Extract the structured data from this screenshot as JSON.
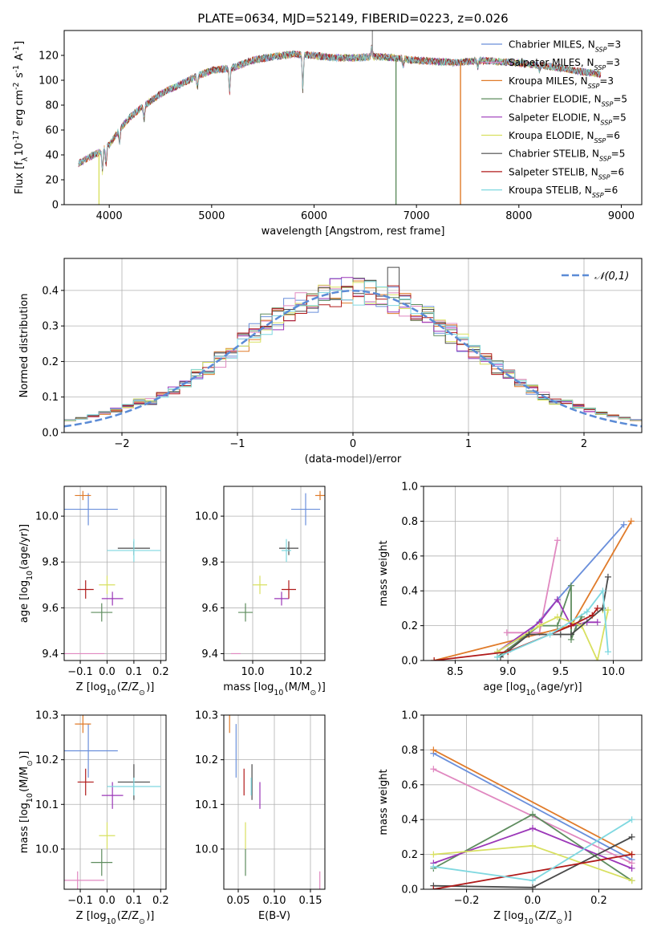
{
  "title": "PLATE=0634, MJD=52149, FIBERID=0223, z=0.026",
  "models": [
    {
      "name": "Chabrier MILES, N$_{SSP}$=3",
      "label": "Chabrier MILES, N",
      "sub": "SSP",
      "eq": "=3",
      "color": "#6a8fdb"
    },
    {
      "name": "Salpeter MILES, N$_{SSP}$=3",
      "label": "Salpeter MILES, N",
      "sub": "SSP",
      "eq": "=3",
      "color": "#e088c0"
    },
    {
      "name": "Kroupa MILES, N$_{SSP}$=3",
      "label": "Kroupa MILES, N",
      "sub": "SSP",
      "eq": "=3",
      "color": "#e07b2a"
    },
    {
      "name": "Chabrier ELODIE, N$_{SSP}$=5",
      "label": "Chabrier ELODIE, N",
      "sub": "SSP",
      "eq": "=5",
      "color": "#5e8c5e"
    },
    {
      "name": "Salpeter ELODIE, N$_{SSP}$=5",
      "label": "Salpeter ELODIE, N",
      "sub": "SSP",
      "eq": "=5",
      "color": "#9b37b8"
    },
    {
      "name": "Kroupa ELODIE, N$_{SSP}$=6",
      "label": "Kroupa ELODIE, N",
      "sub": "SSP",
      "eq": "=6",
      "color": "#d8e060"
    },
    {
      "name": "Chabrier STELIB, N$_{SSP}$=5",
      "label": "Chabrier STELIB, N",
      "sub": "SSP",
      "eq": "=5",
      "color": "#4a4a4a"
    },
    {
      "name": "Salpeter STELIB, N$_{SSP}$=6",
      "label": "Salpeter STELIB, N",
      "sub": "SSP",
      "eq": "=6",
      "color": "#b01a1a"
    },
    {
      "name": "Kroupa STELIB, N$_{SSP}$=6",
      "label": "Kroupa STELIB, N",
      "sub": "SSP",
      "eq": "=6",
      "color": "#7fd8e0"
    }
  ],
  "chart_data": [
    {
      "type": "line",
      "id": "spectrum",
      "xlabel": "wavelength [Angstrom, rest frame]",
      "ylabel": "Flux [f$_\\lambda$10$^{-17}$ erg cm$^{-2}$ s$^{-1}$ A$^{-1}$]",
      "xlim": [
        3560,
        9200
      ],
      "ylim": [
        0,
        140
      ],
      "xticks": [
        4000,
        5000,
        6000,
        7000,
        8000,
        9000
      ],
      "yticks": [
        0,
        20,
        40,
        60,
        80,
        100,
        120
      ],
      "continuum": {
        "x": [
          3700,
          3800,
          3900,
          4000,
          4100,
          4200,
          4300,
          4400,
          4500,
          4600,
          4800,
          5000,
          5200,
          5400,
          5600,
          5800,
          6000,
          6200,
          6400,
          6600,
          6800,
          7000,
          7200,
          7400,
          7600,
          7800,
          8000,
          8200,
          8400,
          8600,
          8800
        ],
        "y": [
          33,
          38,
          42,
          48,
          60,
          70,
          77,
          83,
          89,
          93,
          101,
          108,
          110,
          116,
          119,
          121,
          120,
          118,
          118,
          119,
          118,
          116,
          115,
          114,
          116,
          115,
          114,
          112,
          110,
          107,
          105
        ]
      },
      "spikes": [
        {
          "x": 6800,
          "y": 0,
          "color": "#5e8c5e"
        },
        {
          "x": 7430,
          "y": 0,
          "color": "#e07b2a"
        },
        {
          "x": 3900,
          "y": 0,
          "color": "#d8e060"
        },
        {
          "x": 6570,
          "y": 150,
          "color": "#999999"
        }
      ]
    },
    {
      "type": "histogram",
      "id": "residuals",
      "xlabel": "(data-model)/error",
      "ylabel": "Normed distribution",
      "xlim": [
        -2.5,
        2.5
      ],
      "ylim": [
        0,
        0.49
      ],
      "xticks": [
        -2,
        -1,
        0,
        1,
        2
      ],
      "yticks": [
        0.0,
        0.1,
        0.2,
        0.3,
        0.4
      ],
      "bin_width": 0.1,
      "normal_curve": {
        "label": "$\\mathcal{N}(0,1)$",
        "style": "dashed"
      }
    },
    {
      "type": "scatter",
      "id": "age_vs_Z",
      "xlabel": "Z [log$_{10}$(Z/Z$_\\odot$)]",
      "ylabel": "age  [log$_{10}$(age/yr)]",
      "xlim": [
        -0.16,
        0.22
      ],
      "ylim": [
        9.37,
        10.13
      ],
      "xticks": [
        -0.1,
        0.0,
        0.1,
        0.2
      ],
      "yticks": [
        9.4,
        9.6,
        9.8,
        10.0
      ],
      "points": [
        {
          "x": -0.07,
          "y": 10.03,
          "xerr": 0.11,
          "yerr": 0.07
        },
        {
          "x": -0.11,
          "y": 9.4,
          "xerr": 0.1,
          "yerr": 0.0
        },
        {
          "x": -0.09,
          "y": 10.09,
          "xerr": 0.03,
          "yerr": 0.02
        },
        {
          "x": -0.02,
          "y": 9.58,
          "xerr": 0.04,
          "yerr": 0.04
        },
        {
          "x": 0.02,
          "y": 9.64,
          "xerr": 0.04,
          "yerr": 0.03
        },
        {
          "x": 0.0,
          "y": 9.7,
          "xerr": 0.03,
          "yerr": 0.04
        },
        {
          "x": 0.1,
          "y": 9.86,
          "xerr": 0.06,
          "yerr": 0.03
        },
        {
          "x": -0.08,
          "y": 9.68,
          "xerr": 0.03,
          "yerr": 0.04
        },
        {
          "x": 0.1,
          "y": 9.85,
          "xerr": 0.1,
          "yerr": 0.05
        }
      ]
    },
    {
      "type": "scatter",
      "id": "age_vs_mass",
      "xlabel": "mass [log$_{10}$(M/M$_\\odot$)]",
      "ylabel": "",
      "xlim": [
        9.88,
        10.3
      ],
      "ylim": [
        9.37,
        10.13
      ],
      "xticks": [
        10.0,
        10.2
      ],
      "yticks": [
        9.4,
        9.6,
        9.8,
        10.0
      ],
      "points": [
        {
          "x": 10.22,
          "y": 10.03,
          "xerr": 0.06,
          "yerr": 0.07
        },
        {
          "x": 9.93,
          "y": 9.4,
          "xerr": 0.02,
          "yerr": 0.0
        },
        {
          "x": 10.28,
          "y": 10.09,
          "xerr": 0.02,
          "yerr": 0.02
        },
        {
          "x": 9.97,
          "y": 9.58,
          "xerr": 0.03,
          "yerr": 0.04
        },
        {
          "x": 10.12,
          "y": 9.64,
          "xerr": 0.03,
          "yerr": 0.03
        },
        {
          "x": 10.03,
          "y": 9.7,
          "xerr": 0.03,
          "yerr": 0.04
        },
        {
          "x": 10.15,
          "y": 9.86,
          "xerr": 0.04,
          "yerr": 0.03
        },
        {
          "x": 10.15,
          "y": 9.68,
          "xerr": 0.03,
          "yerr": 0.04
        },
        {
          "x": 10.14,
          "y": 9.85,
          "xerr": 0.02,
          "yerr": 0.05
        }
      ]
    },
    {
      "type": "line",
      "id": "weight_vs_age",
      "xlabel": "age  [log$_{10}$(age/yr)]",
      "ylabel": "mass weight",
      "xlim": [
        8.2,
        10.27
      ],
      "ylim": [
        0,
        1
      ],
      "xticks": [
        8.5,
        9.0,
        9.5,
        10.0
      ],
      "yticks": [
        0.0,
        0.2,
        0.4,
        0.6,
        0.8,
        1.0
      ],
      "series": [
        {
          "x": [
            8.9,
            9.2,
            9.47,
            10.1
          ],
          "y": [
            0.05,
            0.16,
            0.35,
            0.78
          ]
        },
        {
          "x": 8.3,
          "y": 0
        },
        {
          "x": [
            8.99,
            9.3,
            9.47
          ],
          "y": [
            0.16,
            0.16,
            0.69
          ]
        },
        {
          "x": [
            8.3,
            9.6,
            10.17
          ],
          "y": [
            0.0,
            0.2,
            0.8
          ]
        },
        {
          "x": [
            8.9,
            9.3,
            9.47,
            9.6,
            9.6,
            9.65,
            9.7
          ],
          "y": [
            0.02,
            0.2,
            0.2,
            0.43,
            0.12,
            0.2,
            0.25
          ]
        },
        {
          "x": [
            8.9,
            9.3,
            9.47,
            9.6,
            9.75,
            9.85
          ],
          "y": [
            0.05,
            0.22,
            0.35,
            0.2,
            0.22,
            0.22
          ]
        },
        {
          "x": [
            8.9,
            9.3,
            9.47,
            9.7,
            9.85,
            9.95,
            9.9
          ],
          "y": [
            0.05,
            0.2,
            0.25,
            0.2,
            0.0,
            0.29,
            0.29
          ]
        },
        {
          "x": [
            8.93,
            9.2,
            9.5,
            9.6,
            9.9,
            9.95
          ],
          "y": [
            0.02,
            0.15,
            0.15,
            0.15,
            0.3,
            0.48
          ]
        },
        {
          "x": [
            8.3,
            9.0,
            9.6,
            9.8,
            9.85
          ],
          "y": [
            0.0,
            0.05,
            0.2,
            0.26,
            0.3
          ]
        },
        {
          "x": [
            8.9,
            9.4,
            9.75,
            9.9,
            9.95
          ],
          "y": [
            0.02,
            0.15,
            0.28,
            0.4,
            0.05
          ]
        }
      ]
    },
    {
      "type": "scatter",
      "id": "mass_vs_Z",
      "xlabel": "Z [log$_{10}$(Z/Z$_\\odot$)]",
      "ylabel": "mass [log$_{10}$(M/M$_\\odot$)]",
      "xlim": [
        -0.16,
        0.22
      ],
      "ylim": [
        9.91,
        10.3
      ],
      "xticks": [
        -0.1,
        0.0,
        0.1,
        0.2
      ],
      "yticks": [
        10.0,
        10.1,
        10.2,
        10.3
      ],
      "points": [
        {
          "x": -0.07,
          "y": 10.22,
          "xerr": 0.11,
          "yerr": 0.06
        },
        {
          "x": -0.11,
          "y": 9.93,
          "xerr": 0.1,
          "yerr": 0.02
        },
        {
          "x": -0.09,
          "y": 10.28,
          "xerr": 0.03,
          "yerr": 0.02
        },
        {
          "x": -0.02,
          "y": 9.97,
          "xerr": 0.04,
          "yerr": 0.03
        },
        {
          "x": 0.02,
          "y": 10.12,
          "xerr": 0.04,
          "yerr": 0.03
        },
        {
          "x": 0.0,
          "y": 10.03,
          "xerr": 0.03,
          "yerr": 0.03
        },
        {
          "x": 0.1,
          "y": 10.15,
          "xerr": 0.06,
          "yerr": 0.04
        },
        {
          "x": -0.08,
          "y": 10.15,
          "xerr": 0.03,
          "yerr": 0.03
        },
        {
          "x": 0.1,
          "y": 10.14,
          "xerr": 0.1,
          "yerr": 0.02
        }
      ]
    },
    {
      "type": "scatter",
      "id": "mass_vs_ebv",
      "xlabel": "E(B-V)",
      "ylabel": "",
      "xlim": [
        0.03,
        0.17
      ],
      "ylim": [
        9.91,
        10.3
      ],
      "xticks": [
        0.05,
        0.1,
        0.15
      ],
      "yticks": [
        10.0,
        10.1,
        10.2,
        10.3
      ],
      "points": [
        {
          "x": 0.047,
          "y": 10.22,
          "xerr": 0.0,
          "yerr": 0.06
        },
        {
          "x": 0.163,
          "y": 9.93,
          "xerr": 0.0,
          "yerr": 0.02
        },
        {
          "x": 0.038,
          "y": 10.28,
          "xerr": 0.0,
          "yerr": 0.02
        },
        {
          "x": 0.06,
          "y": 9.97,
          "xerr": 0.0,
          "yerr": 0.03
        },
        {
          "x": 0.08,
          "y": 10.12,
          "xerr": 0.0,
          "yerr": 0.03
        },
        {
          "x": 0.06,
          "y": 10.03,
          "xerr": 0.0,
          "yerr": 0.03
        },
        {
          "x": 0.069,
          "y": 10.15,
          "xerr": 0.0,
          "yerr": 0.04
        },
        {
          "x": 0.058,
          "y": 10.15,
          "xerr": 0.0,
          "yerr": 0.03
        },
        {
          "x": 0.068,
          "y": 10.14,
          "xerr": 0.0,
          "yerr": 0.02
        }
      ]
    },
    {
      "type": "line",
      "id": "weight_vs_Z",
      "xlabel": "Z [log$_{10}$(Z/Z$_\\odot$)]",
      "ylabel": "mass weight",
      "xlim": [
        -0.33,
        0.33
      ],
      "ylim": [
        0,
        1
      ],
      "xticks": [
        -0.2,
        0.0,
        0.2
      ],
      "yticks": [
        0.0,
        0.2,
        0.4,
        0.6,
        0.8,
        1.0
      ],
      "series": [
        {
          "x": [
            -0.3,
            0.3
          ],
          "y": [
            0.78,
            0.17
          ]
        },
        {
          "x": [
            -0.3,
            0.3
          ],
          "y": [
            0.69,
            0.15
          ]
        },
        {
          "x": [
            -0.3,
            0.3
          ],
          "y": [
            0.8,
            0.2
          ]
        },
        {
          "x": [
            -0.3,
            0.0,
            0.3
          ],
          "y": [
            0.12,
            0.43,
            0.05
          ]
        },
        {
          "x": [
            -0.3,
            0.0,
            0.3
          ],
          "y": [
            0.15,
            0.35,
            0.12
          ]
        },
        {
          "x": [
            -0.3,
            0.0,
            0.3
          ],
          "y": [
            0.2,
            0.25,
            0.05
          ]
        },
        {
          "x": [
            -0.3,
            0.0,
            0.3
          ],
          "y": [
            0.02,
            0.01,
            0.3
          ]
        },
        {
          "x": [
            -0.3,
            0.3
          ],
          "y": [
            0.0,
            0.2
          ]
        },
        {
          "x": [
            -0.3,
            0.0,
            0.3
          ],
          "y": [
            0.13,
            0.05,
            0.4
          ]
        }
      ]
    }
  ]
}
